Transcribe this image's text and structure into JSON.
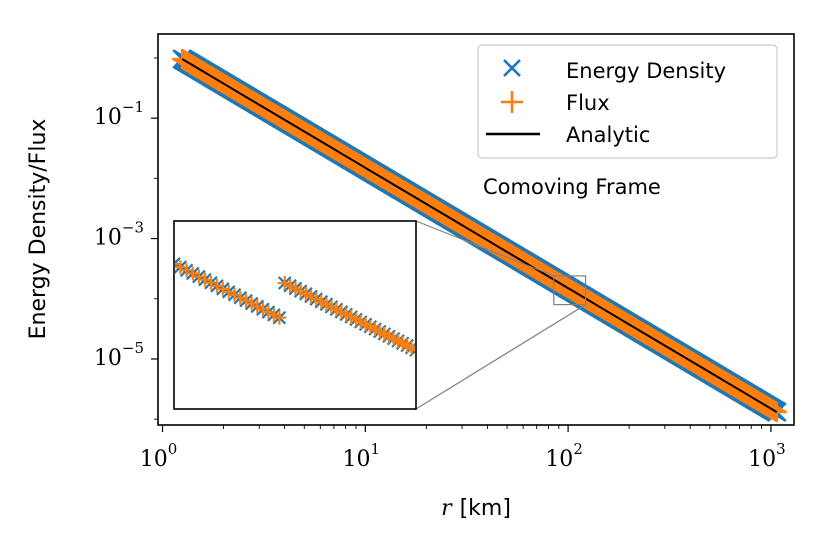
{
  "chart_data": {
    "type": "line",
    "title": "",
    "xlabel_var": "r",
    "xlabel_unit": "[km]",
    "ylabel": "Energy Density/Flux",
    "xscale": "log",
    "yscale": "log",
    "xlim": [
      0.95,
      1300
    ],
    "ylim": [
      8e-07,
      2.5
    ],
    "x_ticks": [
      {
        "base": "10",
        "exp": "0",
        "value": 1
      },
      {
        "base": "10",
        "exp": "1",
        "value": 10
      },
      {
        "base": "10",
        "exp": "2",
        "value": 100
      },
      {
        "base": "10",
        "exp": "3",
        "value": 1000
      }
    ],
    "y_ticks": [
      {
        "base": "10",
        "exp": "−1",
        "value": 0.1
      },
      {
        "base": "10",
        "exp": "−3",
        "value": 0.001
      },
      {
        "base": "10",
        "exp": "−5",
        "value": 1e-05
      }
    ],
    "series": [
      {
        "name": "Energy Density",
        "kind": "markers-x",
        "color": "#1f77b4",
        "law": "1/r^2",
        "coef": 1.5,
        "x_range": [
          1.25,
          1070
        ],
        "count": 600
      },
      {
        "name": "Flux",
        "kind": "markers-plus",
        "color": "#ff7f0e",
        "law": "1/r^2",
        "coef": 1.5,
        "x_range": [
          1.25,
          1070
        ],
        "count": 600
      },
      {
        "name": "Analytic",
        "kind": "line",
        "color": "#000000",
        "law": "1/r^2",
        "coef": 1.5,
        "x_range": [
          1.25,
          1070
        ]
      }
    ],
    "legend_location": "top-right",
    "annotation": "Comoving Frame",
    "inset": {
      "description": "zoom of region near r ≈ 100 km",
      "x_range": [
        85,
        122
      ],
      "y_range": [
        8e-05,
        0.00024
      ],
      "discontinuity_at": 100
    }
  }
}
